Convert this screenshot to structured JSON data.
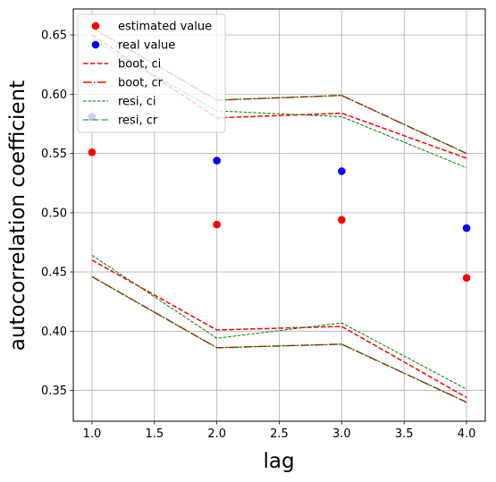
{
  "chart_data": {
    "type": "line",
    "xlabel": "lag",
    "ylabel": "autocorrelation coefficient",
    "xlim": [
      0.85,
      4.15
    ],
    "ylim": [
      0.324,
      0.672
    ],
    "xticks": [
      1.0,
      1.5,
      2.0,
      2.5,
      3.0,
      3.5,
      4.0
    ],
    "yticks": [
      0.35,
      0.4,
      0.45,
      0.5,
      0.55,
      0.6,
      0.65
    ],
    "grid": true,
    "legend_position": "top-left",
    "x": [
      1,
      2,
      3,
      4
    ],
    "series": [
      {
        "name": "estimated value",
        "kind": "points",
        "color": "#ff0000",
        "values": [
          0.551,
          0.49,
          0.494,
          0.445
        ]
      },
      {
        "name": "real value",
        "kind": "points",
        "color": "#0000ff",
        "values": [
          0.581,
          0.544,
          0.535,
          0.487
        ]
      },
      {
        "name": "boot, ci",
        "kind": "band",
        "color": "#ff0000",
        "dash": "dashed",
        "upper": [
          0.65,
          0.58,
          0.584,
          0.546
        ],
        "lower": [
          0.46,
          0.401,
          0.404,
          0.344
        ]
      },
      {
        "name": "boot, cr",
        "kind": "band",
        "color": "#ff0000",
        "dash": "dashdot",
        "upper": [
          0.656,
          0.595,
          0.599,
          0.55
        ],
        "lower": [
          0.446,
          0.386,
          0.389,
          0.34
        ]
      },
      {
        "name": "resi, ci",
        "kind": "band",
        "color": "#008000",
        "dash": "dashed-thin",
        "upper": [
          0.646,
          0.586,
          0.581,
          0.538
        ],
        "lower": [
          0.464,
          0.394,
          0.407,
          0.351
        ]
      },
      {
        "name": "resi, cr",
        "kind": "band",
        "color": "#008000",
        "dash": "dashdot-thin",
        "upper": [
          0.656,
          0.595,
          0.599,
          0.55
        ],
        "lower": [
          0.446,
          0.386,
          0.389,
          0.34
        ]
      }
    ]
  }
}
